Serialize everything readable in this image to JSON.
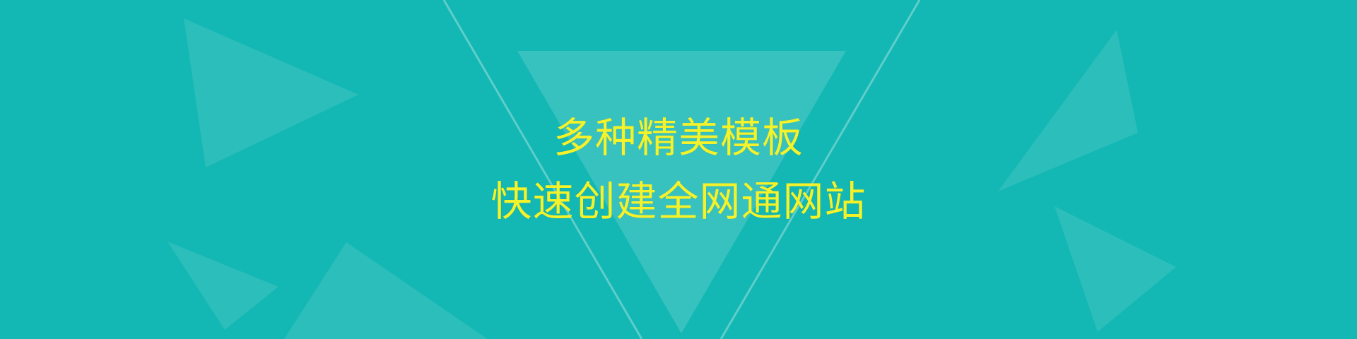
{
  "banner": {
    "headline_line1": "多种精美模板",
    "headline_line2": "快速创建全网通网站"
  },
  "colors": {
    "background": "#13b7b3",
    "shape_fill": "#ffffff",
    "headline_text": "#f4f22a"
  }
}
